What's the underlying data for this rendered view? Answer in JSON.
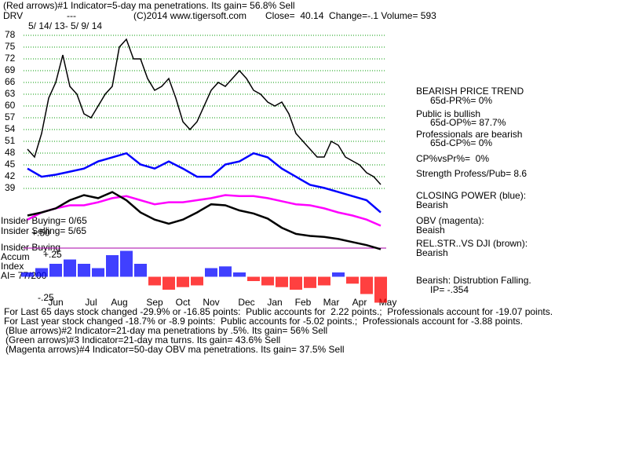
{
  "header": {
    "title": "(Red arrows)#1 Indicator=5-day ma penetrations. Its gain= 56.8% Sell",
    "symbol": "DRV",
    "dashes": "---",
    "copyright": "(C)2014 www.tigersoft.com",
    "quote": "Close=  40.14  Change=-.1 Volume= 593",
    "range": "5/ 14/ 13- 5/ 9/ 14"
  },
  "chart_data": [
    {
      "type": "line",
      "categories": [
        null,
        null,
        null,
        null,
        "Jun",
        null,
        null,
        null,
        null,
        "Jul",
        null,
        null,
        null,
        "Aug",
        null,
        null,
        null,
        null,
        "Sep",
        null,
        null,
        null,
        "Oct",
        null,
        null,
        null,
        "Nov",
        null,
        null,
        null,
        null,
        "Dec",
        null,
        null,
        null,
        "Jan",
        null,
        null,
        null,
        "Feb",
        null,
        null,
        null,
        "Mar",
        null,
        null,
        null,
        "Apr",
        null,
        null,
        null,
        "May"
      ],
      "series": [
        {
          "color": "#000000",
          "values": [
            49,
            47,
            53,
            62,
            66,
            73,
            65,
            63,
            58,
            57,
            60,
            63,
            65,
            75,
            77,
            72,
            72,
            67,
            64,
            65,
            67,
            62,
            56,
            54,
            56,
            60,
            64,
            66,
            65,
            67,
            69,
            67,
            64,
            63,
            61,
            60,
            61,
            58,
            53,
            51,
            49,
            47,
            47,
            51,
            50,
            47,
            46,
            45,
            43,
            42,
            40,
            null
          ]
        }
      ],
      "ylim": [
        37,
        83
      ],
      "yticks": [
        78,
        75,
        72,
        69,
        66,
        63,
        60,
        57,
        54,
        51,
        48,
        45,
        42,
        39
      ],
      "grid": true,
      "grid_color": "#009900"
    },
    {
      "type": "line",
      "ylim": [
        0,
        100
      ],
      "series": [
        {
          "color": "#0000ff",
          "values": [
            81,
            73,
            75,
            78,
            81,
            88,
            92,
            96,
            85,
            81,
            88,
            81,
            73,
            73,
            85,
            88,
            96,
            92,
            81,
            73,
            65,
            62,
            58,
            54,
            50,
            38
          ]
        },
        {
          "color": "#ff00ff",
          "values": [
            31,
            38,
            42,
            45,
            45,
            48,
            52,
            54,
            50,
            46,
            48,
            48,
            50,
            52,
            55,
            54,
            54,
            52,
            49,
            46,
            45,
            42,
            38,
            35,
            31,
            25
          ]
        },
        {
          "color": "#000000",
          "values": [
            35,
            38,
            42,
            50,
            55,
            52,
            58,
            50,
            38,
            31,
            27,
            31,
            38,
            46,
            45,
            40,
            37,
            32,
            23,
            17,
            15,
            14,
            12,
            9,
            6,
            2
          ]
        }
      ]
    },
    {
      "type": "bar",
      "ylim": [
        -0.35,
        0.5
      ],
      "yticks": [
        {
          "value": 0.5,
          "label": "+.50"
        },
        {
          "value": 0.25,
          "label": "+.25"
        },
        {
          "value": -0.25,
          "label": "-.25"
        }
      ],
      "values": [
        0.05,
        0.1,
        0.15,
        0.2,
        0.15,
        0.1,
        0.25,
        0.3,
        0.15,
        -0.1,
        -0.15,
        -0.12,
        -0.1,
        0.1,
        0.12,
        0.05,
        -0.05,
        -0.1,
        -0.12,
        -0.15,
        -0.13,
        -0.1,
        0.05,
        -0.08,
        -0.2,
        -0.3
      ],
      "positive_color": "#0000ff",
      "negative_color": "#ff0000"
    }
  ],
  "insider": {
    "buying": "Insider Buying= 0/65",
    "selling": "Insider Selling= 5/65",
    "buying_label": "Insider Buying",
    "accum": "Accum",
    "index": "Index",
    "ai": "AI= 77/200"
  },
  "side": [
    "BEARISH PRICE TREND",
    "65d-PR%= 0%",
    "Public is bullish",
    "65d-OP%= 87.7%",
    "Professionals are bearish",
    "65d-CP%= 0%",
    "CP%vsPr%=  0%",
    "Strength Profess/Pub= 8.6",
    "CLOSING POWER (blue):",
    "Bearish",
    "OBV (magenta):",
    "Beaish",
    "REL.STR..VS DJI (brown):",
    "Bearish",
    "Bearish: Distrubtion Falling.",
    "IP= -.354"
  ],
  "footer": [
    "For Last 65 days stock changed -29.9% or -16.85 points:  Public accounts for  2.22 points.;  Professionals account for -19.07 points.",
    "For Last year stock changed -18.7% or -8.9 points:  Public accounts for -5.02 points.;  Professionals account for -3.88 points.",
    "(Blue arrows)#2 Indicator=21-day ma penetrations by .5%. Its gain= 56% Sell",
    "(Green arrows)#3 Indicator=21-day ma turns. Its gain= 43.6% Sell",
    "(Magenta arrows)#4 Indicator=50-day OBV ma penetrations. Its gain= 37.5% Sell"
  ]
}
